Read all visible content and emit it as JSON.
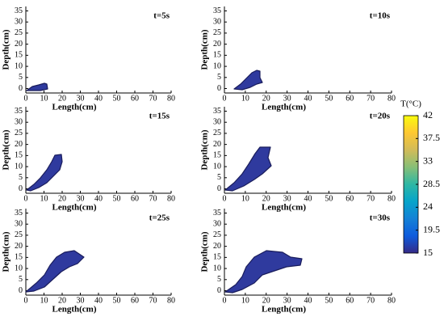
{
  "chart_data": [
    {
      "type": "heatmap",
      "annotation": "t=5s",
      "xlabel": "Length(cm)",
      "ylabel": "Depth(cm)",
      "xlim": [
        0,
        80
      ],
      "xticks": [
        0,
        10,
        20,
        30,
        40,
        50,
        60,
        70,
        80
      ],
      "ylim": [
        -2,
        37
      ],
      "yticks": [
        0,
        5,
        10,
        15,
        20,
        25,
        30,
        35
      ]
    },
    {
      "type": "heatmap",
      "annotation": "t=10s",
      "xlabel": "Length(cm)",
      "ylabel": "Depth(cm)",
      "xlim": [
        0,
        80
      ],
      "xticks": [
        0,
        10,
        20,
        30,
        40,
        50,
        60,
        70,
        80
      ],
      "ylim": [
        -2,
        37
      ],
      "yticks": [
        0,
        5,
        10,
        15,
        20,
        25,
        30,
        35
      ]
    },
    {
      "type": "heatmap",
      "annotation": "t=15s",
      "xlabel": "Length(cm)",
      "ylabel": "Depth(cm)",
      "xlim": [
        0,
        80
      ],
      "xticks": [
        0,
        10,
        20,
        30,
        40,
        50,
        60,
        70,
        80
      ],
      "ylim": [
        -2,
        37
      ],
      "yticks": [
        0,
        5,
        10,
        15,
        20,
        25,
        30,
        35
      ]
    },
    {
      "type": "heatmap",
      "annotation": "t=20s",
      "xlabel": "Length(cm)",
      "ylabel": "Depth(cm)",
      "xlim": [
        0,
        80
      ],
      "xticks": [
        0,
        10,
        20,
        30,
        40,
        50,
        60,
        70,
        80
      ],
      "ylim": [
        -2,
        37
      ],
      "yticks": [
        0,
        5,
        10,
        15,
        20,
        25,
        30,
        35
      ]
    },
    {
      "type": "heatmap",
      "annotation": "t=25s",
      "xlabel": "Length(cm)",
      "ylabel": "Depth(cm)",
      "xlim": [
        0,
        80
      ],
      "xticks": [
        0,
        10,
        20,
        30,
        40,
        50,
        60,
        70,
        80
      ],
      "ylim": [
        -2,
        37
      ],
      "yticks": [
        0,
        5,
        10,
        15,
        20,
        25,
        30,
        35
      ]
    },
    {
      "type": "heatmap",
      "annotation": "t=30s",
      "xlabel": "Length(cm)",
      "ylabel": "Depth(cm)",
      "xlim": [
        0,
        80
      ],
      "xticks": [
        0,
        10,
        20,
        30,
        40,
        50,
        60,
        70,
        80
      ],
      "ylim": [
        -2,
        37
      ],
      "yticks": [
        0,
        5,
        10,
        15,
        20,
        25,
        30,
        35
      ]
    }
  ],
  "colorbar": {
    "label": "T(°C)",
    "lim": [
      15,
      42
    ],
    "ticks": [
      15,
      19.5,
      24,
      28.5,
      33,
      37.5,
      42
    ],
    "colors": [
      "#352a87",
      "#0f5cdd",
      "#1481d6",
      "#06a4ca",
      "#2eb7a4",
      "#87bf77",
      "#d1bb59",
      "#fec832",
      "#f9fb0e"
    ]
  }
}
